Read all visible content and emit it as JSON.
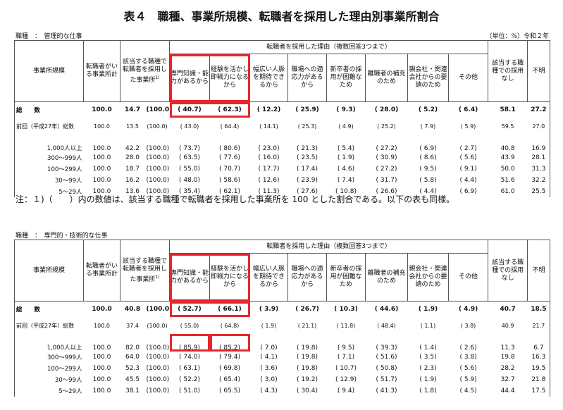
{
  "title": "表４　職種、事業所規模、転職者を採用した理由別事業所割合",
  "unit": "（単位：%）令和２年",
  "headers": {
    "size": "事業所規模",
    "with_changers": "転職者がいる事業所計",
    "hired": "該当する職種で転職者を採用した事業所",
    "hired_note": "1)",
    "reasons_group": "転職者を採用した理由（複数回答3つまで）",
    "reasons": [
      "専門知識・能力があるから",
      "経験を活かし即戦力になるから",
      "幅広い人脈を期待できるから",
      "職場への適応力があるから",
      "新卒者の採用が困難なため",
      "離職者の補充のため",
      "親会社・関連会社からの要請のため",
      "その他"
    ],
    "none": "該当する職種での採用なし",
    "unknown": "不明"
  },
  "tables": [
    {
      "occupation": "職種　：　管理的な仕事",
      "rows": [
        {
          "label": "総　　数",
          "cells": [
            "100.0",
            "14.7",
            "(100.0)",
            "( 40.7)",
            "( 62.3)",
            "( 12.2)",
            "( 25.9)",
            "( 9.3)",
            "( 28.0)",
            "( 5.2)",
            "( 6.4)",
            "58.1",
            "27.2"
          ]
        },
        {
          "label": "前回（平成27年）総数",
          "cells": [
            "100.0",
            "13.5",
            "(100.0)",
            "( 43.0)",
            "( 64.4)",
            "( 14.1)",
            "( 25.3)",
            "( 4.9)",
            "( 25.2)",
            "( 7.9)",
            "( 5.9)",
            "59.5",
            "27.0"
          ]
        },
        {
          "label": "1,000人以上",
          "cells": [
            "100.0",
            "42.2",
            "(100.0)",
            "( 73.7)",
            "( 80.6)",
            "( 23.0)",
            "( 21.3)",
            "( 5.4)",
            "( 27.2)",
            "( 6.9)",
            "( 2.7)",
            "40.8",
            "16.9"
          ]
        },
        {
          "label": "300～999人",
          "cells": [
            "100.0",
            "28.0",
            "(100.0)",
            "( 63.5)",
            "( 77.6)",
            "( 16.0)",
            "( 23.5)",
            "( 1.9)",
            "( 30.9)",
            "( 8.6)",
            "( 5.6)",
            "43.9",
            "28.1"
          ]
        },
        {
          "label": "100～299人",
          "cells": [
            "100.0",
            "18.7",
            "(100.0)",
            "( 55.0)",
            "( 70.7)",
            "( 17.7)",
            "( 17.4)",
            "( 4.6)",
            "( 27.2)",
            "( 9.5)",
            "( 9.1)",
            "50.0",
            "31.3"
          ]
        },
        {
          "label": "30～99人",
          "cells": [
            "100.0",
            "16.2",
            "(100.0)",
            "( 48.0)",
            "( 58.6)",
            "( 12.6)",
            "( 23.9)",
            "( 7.4)",
            "( 31.7)",
            "( 5.8)",
            "( 4.4)",
            "51.6",
            "32.2"
          ]
        },
        {
          "label": "5～29人",
          "cells": [
            "100.0",
            "13.6",
            "(100.0)",
            "( 35.4)",
            "( 62.1)",
            "( 11.3)",
            "( 27.6)",
            "( 10.8)",
            "( 26.6)",
            "( 4.4)",
            "( 6.9)",
            "61.0",
            "25.5"
          ]
        }
      ]
    },
    {
      "occupation": "職種　：　専門的・技術的な仕事",
      "rows": [
        {
          "label": "総　　数",
          "cells": [
            "100.0",
            "40.8",
            "(100.0)",
            "( 52.7)",
            "( 66.1)",
            "( 3.9)",
            "( 26.7)",
            "( 10.3)",
            "( 44.6)",
            "( 1.9)",
            "( 4.9)",
            "40.7",
            "18.5"
          ]
        },
        {
          "label": "前回（平成27年）総数",
          "cells": [
            "100.0",
            "37.4",
            "(100.0)",
            "( 55.0)",
            "( 64.8)",
            "( 1.9)",
            "( 21.1)",
            "( 11.8)",
            "( 48.4)",
            "( 1.1)",
            "( 3.8)",
            "40.9",
            "21.7"
          ]
        },
        {
          "label": "1,000人以上",
          "cells": [
            "100.0",
            "82.0",
            "(100.0)",
            "( 85.9)",
            "( 85.2)",
            "( 7.0)",
            "( 19.8)",
            "( 9.5)",
            "( 39.3)",
            "( 1.4)",
            "( 2.6)",
            "11.3",
            "6.7"
          ]
        },
        {
          "label": "300～999人",
          "cells": [
            "100.0",
            "64.0",
            "(100.0)",
            "( 74.0)",
            "( 79.4)",
            "( 4.1)",
            "( 19.8)",
            "( 7.1)",
            "( 51.6)",
            "( 3.5)",
            "( 3.8)",
            "19.8",
            "16.3"
          ]
        },
        {
          "label": "100～299人",
          "cells": [
            "100.0",
            "52.3",
            "(100.0)",
            "( 63.1)",
            "( 69.8)",
            "( 3.6)",
            "( 19.8)",
            "( 10.7)",
            "( 50.8)",
            "( 2.3)",
            "( 5.6)",
            "28.2",
            "19.5"
          ]
        },
        {
          "label": "30～99人",
          "cells": [
            "100.0",
            "45.5",
            "(100.0)",
            "( 52.2)",
            "( 65.4)",
            "( 3.0)",
            "( 19.2)",
            "( 12.9)",
            "( 51.7)",
            "( 1.9)",
            "( 5.9)",
            "32.7",
            "21.8"
          ]
        },
        {
          "label": "5～29人",
          "cells": [
            "100.0",
            "38.1",
            "(100.0)",
            "( 51.0)",
            "( 65.5)",
            "( 4.3)",
            "( 30.4)",
            "( 9.4)",
            "( 41.3)",
            "( 1.8)",
            "( 4.5)",
            "44.4",
            "17.5"
          ]
        }
      ]
    }
  ],
  "note": "注：１)（　　）内の数値は、該当する職種で転職者を採用した事業所を 100 とした割合である。以下の表も同様。"
}
